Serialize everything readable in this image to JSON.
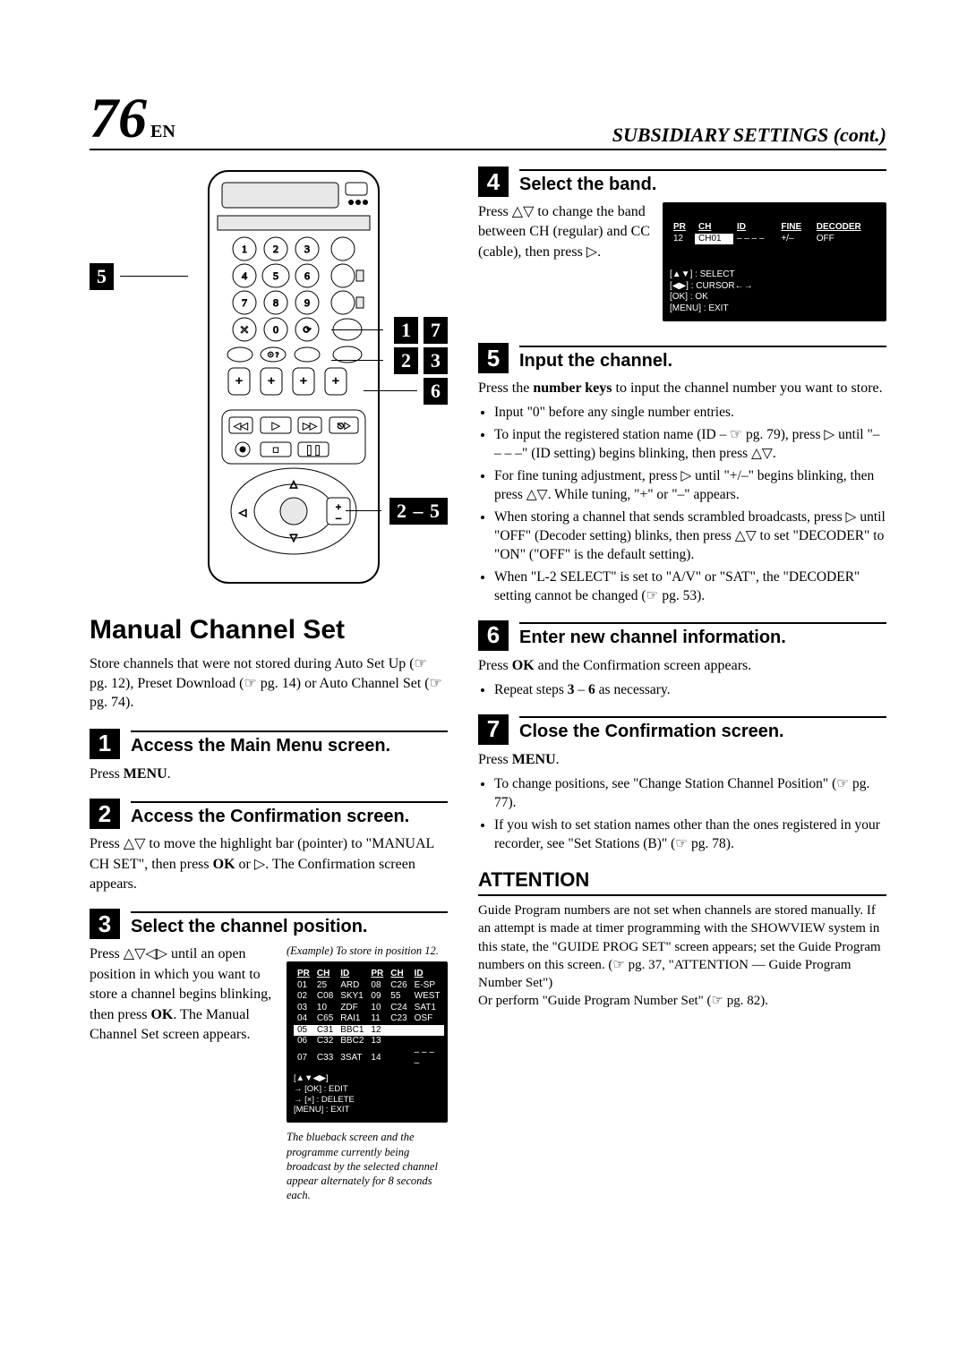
{
  "page_number": "76",
  "lang": "EN",
  "section_title": "SUBSIDIARY SETTINGS (cont.)",
  "left": {
    "callouts": {
      "c5": "5",
      "c1": "1",
      "c7": "7",
      "c2": "2",
      "c3": "3",
      "c6": "6",
      "range": "2 – 5"
    },
    "h1": "Manual Channel Set",
    "intro": "Store channels that were not stored during Auto Set Up (☞ pg. 12), Preset Download (☞ pg. 14) or Auto Channel Set (☞ pg. 74).",
    "steps": [
      {
        "n": "1",
        "title": "Access the Main Menu screen.",
        "body": "Press <b>MENU</b>."
      },
      {
        "n": "2",
        "title": "Access the Confirmation screen.",
        "body": "Press △▽ to move the highlight bar (pointer) to \"MANUAL CH SET\", then press <b>OK</b> or ▷. The Confirmation screen appears."
      },
      {
        "n": "3",
        "title": "Select the channel position.",
        "text": "Press △▽◁▷ until an open position in which you want to store a channel begins blinking, then press <b>OK</b>. The Manual Channel Set screen appears.",
        "caption": "(Example) To store in position 12.",
        "table_hdr": [
          "PR",
          "CH",
          "ID",
          "PR",
          "CH",
          "ID"
        ],
        "table_rows": [
          [
            "01",
            "25",
            "ARD",
            "08",
            "C26",
            "E-SP"
          ],
          [
            "02",
            "C08",
            "SKY1",
            "09",
            "55",
            "WEST"
          ],
          [
            "03",
            "10",
            "ZDF",
            "10",
            "C24",
            "SAT1"
          ],
          [
            "04",
            "C65",
            "RAI1",
            "11",
            "C23",
            "OSF"
          ]
        ],
        "table_rows_hl": [
          [
            "05",
            "C31",
            "BBC1",
            "12",
            "",
            ""
          ]
        ],
        "table_rows2": [
          [
            "06",
            "C32",
            "BBC2",
            "13",
            "",
            ""
          ],
          [
            "07",
            "C33",
            "3SAT",
            "14",
            "",
            "– – – –"
          ]
        ],
        "legend": "[▲▼◀▶]\n→ [OK] : EDIT\n→ [×] : DELETE\n[MENU] : EXIT",
        "note": "The blueback screen and the programme currently being broadcast by the selected channel appear alternately for 8 seconds each."
      }
    ]
  },
  "right": {
    "steps": [
      {
        "n": "4",
        "title": "Select the band.",
        "body": "Press △▽ to change the band between CH (regular) and CC (cable), then press ▷.",
        "screen_hdr": [
          "PR",
          "CH",
          "ID",
          "FINE",
          "DECODER"
        ],
        "screen_row": [
          "12",
          "CH01",
          "– – – –",
          "+/–",
          "OFF"
        ],
        "screen_legend": "[▲▼] : SELECT\n[◀▶] : CURSOR←→\n[OK] : OK\n[MENU] : EXIT"
      },
      {
        "n": "5",
        "title": "Input the channel.",
        "body": "Press the <b>number keys</b> to input the channel number you want to store.",
        "bullets": [
          "Input \"0\" before any single number entries.",
          "To input the registered station name (ID – ☞ pg. 79), press ▷ until \"– – – –\" (ID setting) begins blinking, then press △▽.",
          "For fine tuning adjustment, press ▷ until \"+/–\" begins blinking, then press △▽. While tuning, \"+\" or \"–\" appears.",
          "When storing a channel that sends scrambled broadcasts, press ▷ until \"OFF\" (Decoder setting) blinks, then press △▽ to set \"DECODER\" to \"ON\" (\"OFF\" is the default setting).",
          "When \"L-2 SELECT\" is set to \"A/V\" or \"SAT\", the \"DECODER\" setting cannot be changed (☞ pg. 53)."
        ]
      },
      {
        "n": "6",
        "title": "Enter new channel information.",
        "body": "Press <b>OK</b> and the Confirmation screen appears.",
        "bullets": [
          "Repeat steps <b>3</b> – <b>6</b> as necessary."
        ]
      },
      {
        "n": "7",
        "title": "Close the Confirmation screen.",
        "body": "Press <b>MENU</b>.",
        "bullets": [
          "To change positions, see \"Change Station Channel Position\" (☞ pg. 77).",
          "If you wish to set station names other than the ones registered in your recorder, see \"Set Stations (B)\" (☞ pg. 78)."
        ]
      }
    ],
    "attention_title": "ATTENTION",
    "attention_body": "Guide Program numbers are not set when channels are stored manually. If an attempt is made at timer programming with the SHOWVIEW system in this state, the \"GUIDE PROG SET\" screen appears; set the Guide Program numbers on this screen. (☞ pg. 37, \"ATTENTION — Guide Program Number Set\")\nOr perform \"Guide Program Number Set\" (☞ pg. 82)."
  },
  "remote_svg": {
    "body_rx": 22,
    "btn_stroke": "#000",
    "btn_fill": "#fff"
  }
}
